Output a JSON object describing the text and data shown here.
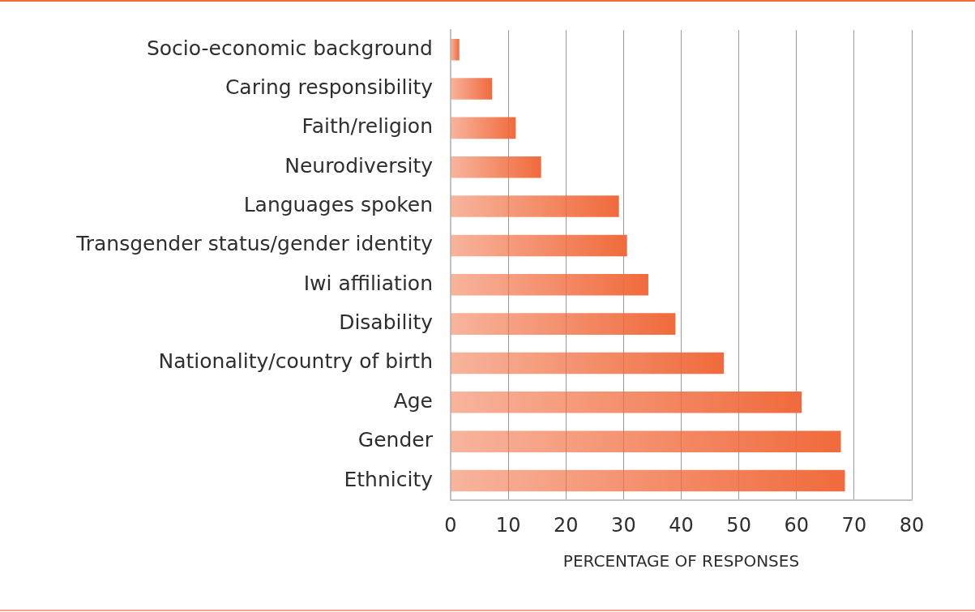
{
  "chart_data": {
    "type": "bar",
    "orientation": "horizontal",
    "xlabel": "PERCENTAGE OF RESPONSES",
    "categories": [
      "Socio-economic background",
      "Caring responsibility",
      "Faith/religion",
      "Neurodiversity",
      "Languages spoken",
      "Transgender status/gender identity",
      "Iwi affiliation",
      "Disability",
      "Nationality/country of birth",
      "Age",
      "Gender",
      "Ethnicity"
    ],
    "values": [
      1.5,
      7.2,
      11.3,
      15.7,
      29.2,
      30.6,
      34.3,
      39.0,
      47.4,
      60.9,
      67.7,
      68.4
    ],
    "color": "#f06a3c",
    "xlim": [
      0,
      80
    ],
    "xticks": [
      0,
      10,
      20,
      30,
      40,
      50,
      60,
      70,
      80
    ],
    "grid": "x"
  }
}
